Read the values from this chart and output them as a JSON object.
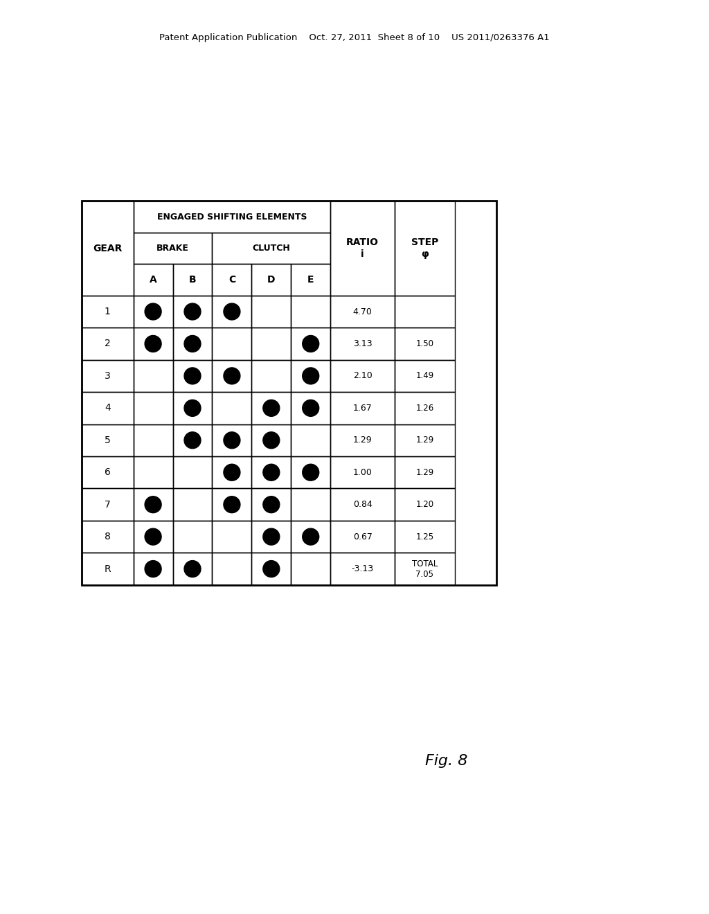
{
  "header_text": "Patent Application Publication    Oct. 27, 2011  Sheet 8 of 10    US 2011/0263376 A1",
  "fig_label": "Fig. 8",
  "title": "ENGAGED SHIFTING ELEMENTS",
  "brake_label": "BRAKE",
  "clutch_label": "CLUTCH",
  "ratio_label": "RATIO\ni",
  "step_label": "STEP\nφ",
  "gear_label": "GEAR",
  "col_labels": [
    "A",
    "B",
    "C",
    "D",
    "E"
  ],
  "rows": [
    {
      "gear": "1",
      "A": true,
      "B": true,
      "C": true,
      "D": false,
      "E": false,
      "ratio": "4.70",
      "step": ""
    },
    {
      "gear": "2",
      "A": true,
      "B": true,
      "C": false,
      "D": false,
      "E": true,
      "ratio": "3.13",
      "step": "1.50"
    },
    {
      "gear": "3",
      "A": false,
      "B": true,
      "C": true,
      "D": false,
      "E": true,
      "ratio": "2.10",
      "step": "1.49"
    },
    {
      "gear": "4",
      "A": false,
      "B": true,
      "C": false,
      "D": true,
      "E": true,
      "ratio": "1.67",
      "step": "1.26"
    },
    {
      "gear": "5",
      "A": false,
      "B": true,
      "C": true,
      "D": true,
      "E": false,
      "ratio": "1.29",
      "step": "1.29"
    },
    {
      "gear": "6",
      "A": false,
      "B": false,
      "C": true,
      "D": true,
      "E": true,
      "ratio": "1.00",
      "step": "1.29"
    },
    {
      "gear": "7",
      "A": true,
      "B": false,
      "C": true,
      "D": true,
      "E": false,
      "ratio": "0.84",
      "step": "1.20"
    },
    {
      "gear": "8",
      "A": true,
      "B": false,
      "C": false,
      "D": true,
      "E": true,
      "ratio": "0.67",
      "step": "1.25"
    },
    {
      "gear": "R",
      "A": true,
      "B": true,
      "C": false,
      "D": true,
      "E": false,
      "ratio": "-3.13",
      "step": "TOTAL\n7.05"
    }
  ],
  "bg_color": "#ffffff"
}
